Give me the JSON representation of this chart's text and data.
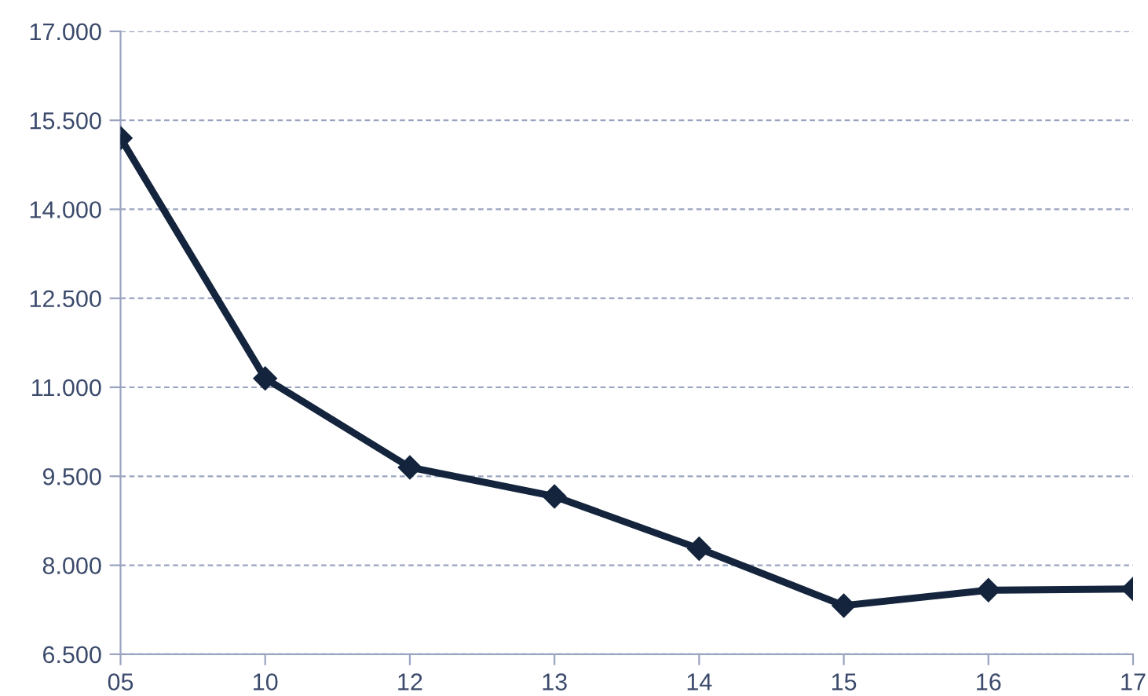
{
  "chart_data": {
    "type": "line",
    "categories": [
      "05",
      "10",
      "12",
      "13",
      "14",
      "15",
      "16",
      "17"
    ],
    "series": [
      {
        "color": "#14243d",
        "values": [
          15200,
          11150,
          9650,
          9160,
          8280,
          7320,
          7580,
          7600
        ]
      }
    ],
    "ylim": [
      6500,
      17000
    ],
    "yticks": [
      {
        "value": 6500,
        "label": "6.500"
      },
      {
        "value": 8000,
        "label": "8.000"
      },
      {
        "value": 9500,
        "label": "9.500"
      },
      {
        "value": 11000,
        "label": "11.000"
      },
      {
        "value": 12500,
        "label": "12.500"
      },
      {
        "value": 14000,
        "label": "14.000"
      },
      {
        "value": 15500,
        "label": "15.500"
      },
      {
        "value": 17000,
        "label": "17.000"
      }
    ],
    "grid": "y",
    "marker": "diamond",
    "line_style": "solid",
    "legend": false
  }
}
